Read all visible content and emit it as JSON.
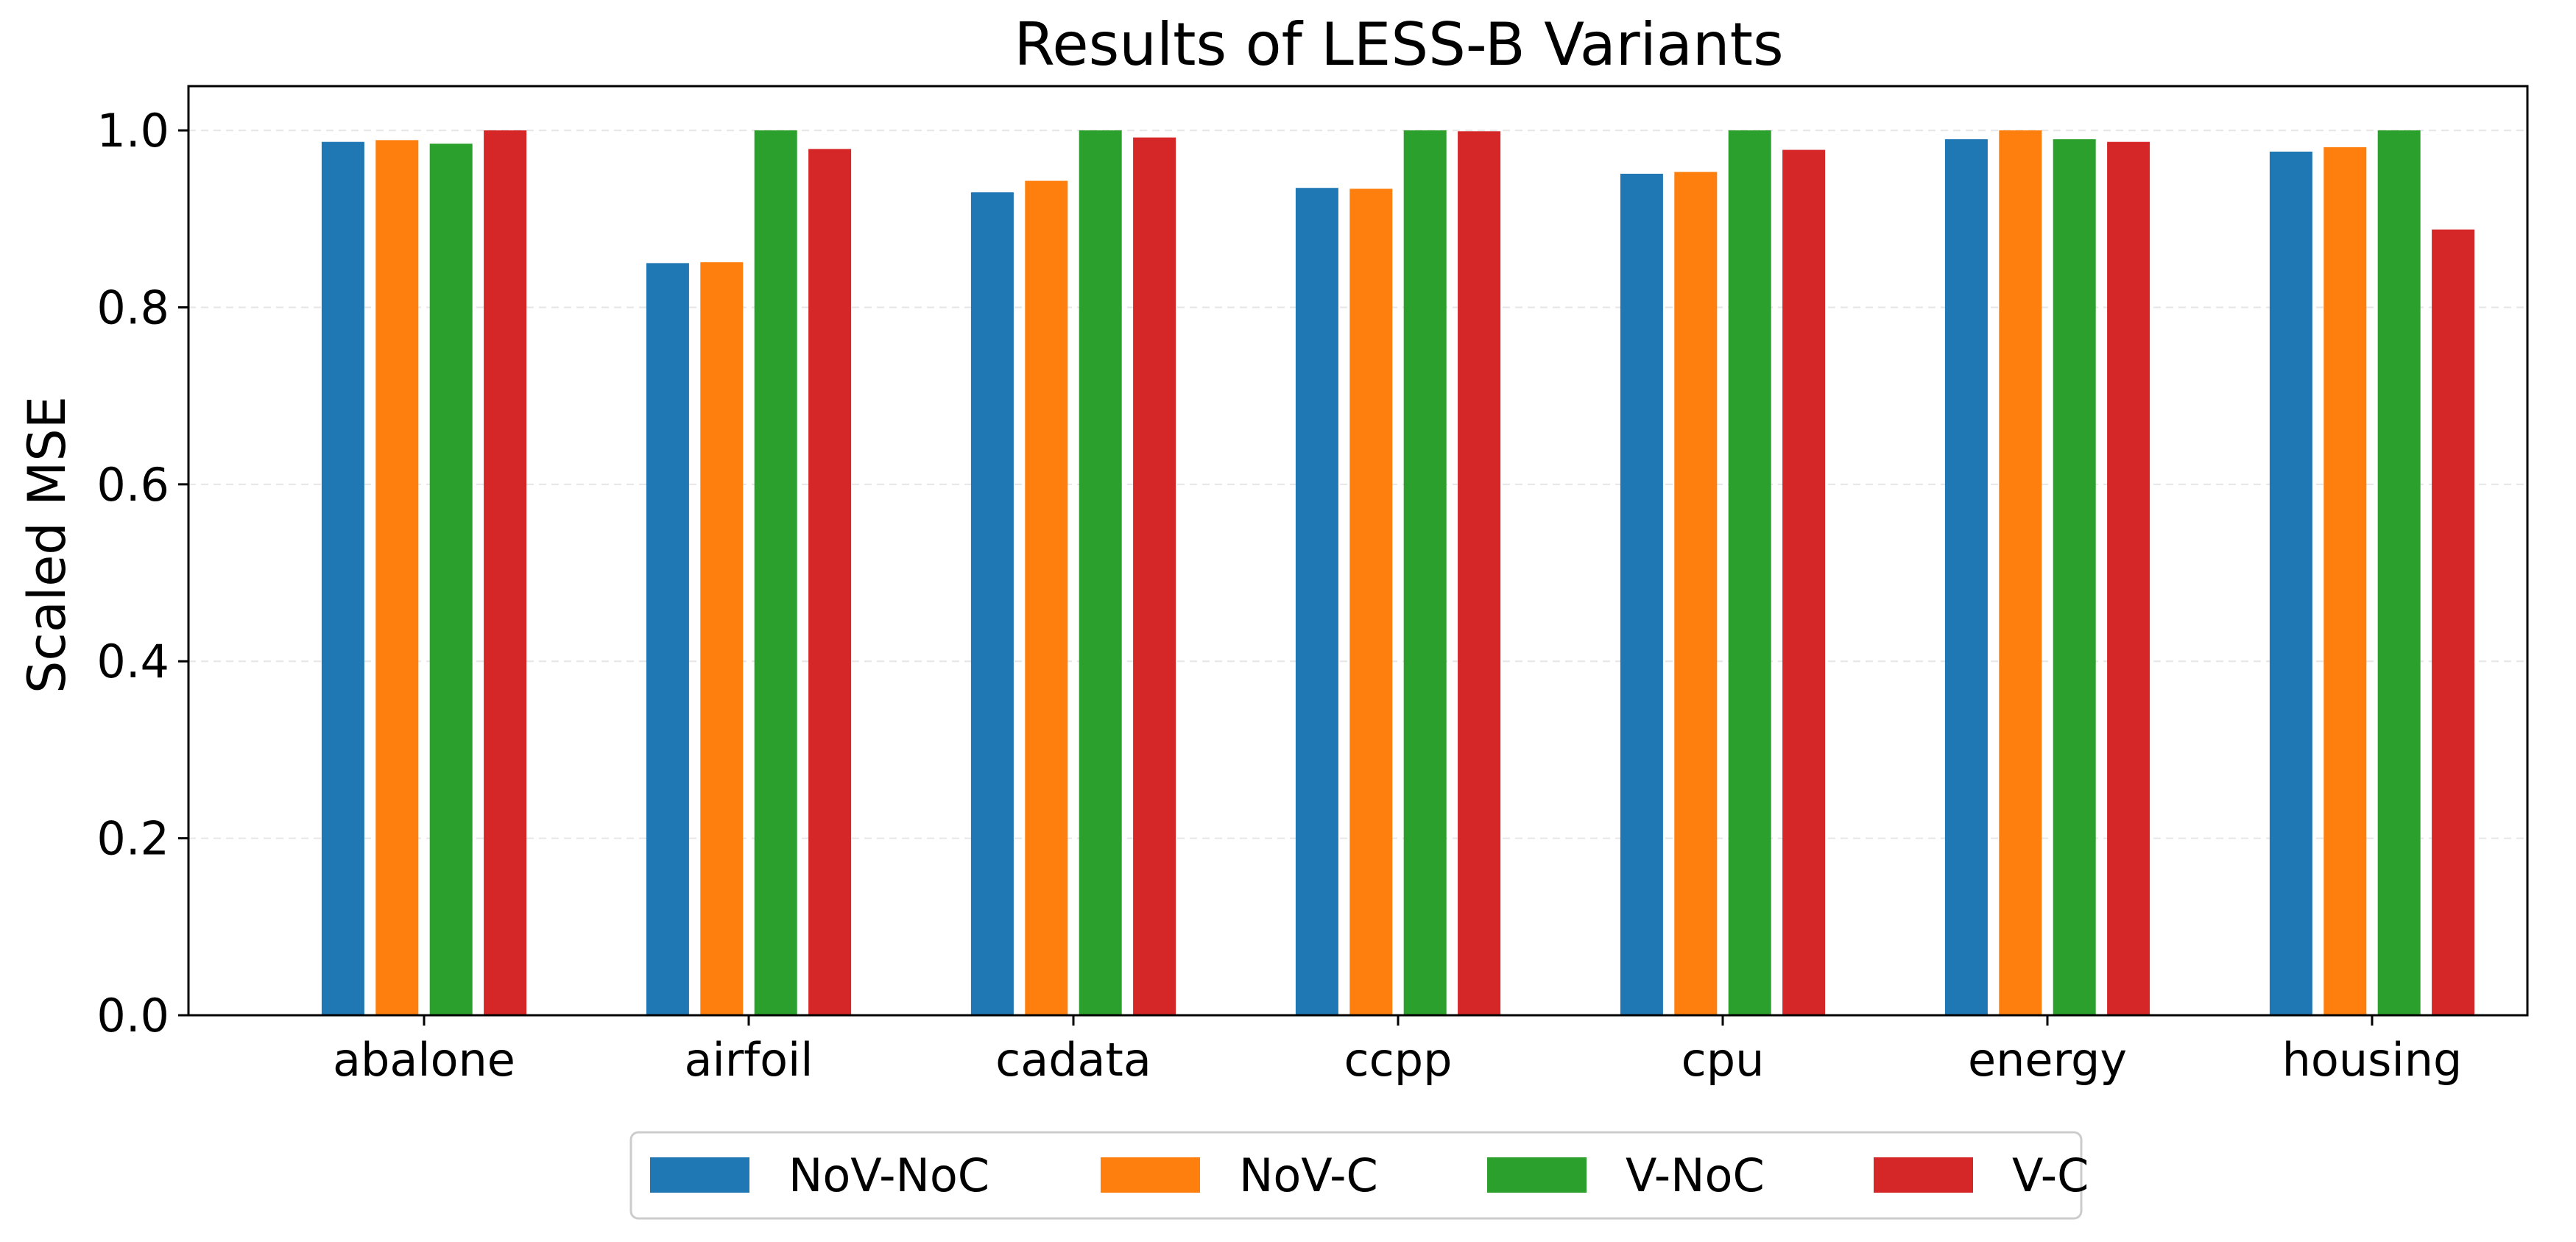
{
  "chart_data": {
    "type": "bar",
    "title": "Results of LESS-B Variants",
    "xlabel": "",
    "ylabel": "Scaled MSE",
    "ylim": [
      0,
      1.05
    ],
    "yticks": [
      "0.0",
      "0.2",
      "0.4",
      "0.6",
      "0.8",
      "1.0"
    ],
    "ytick_values": [
      0.0,
      0.2,
      0.4,
      0.6,
      0.8,
      1.0
    ],
    "grid": true,
    "legend_position": "bottom-center",
    "categories": [
      "abalone",
      "airfoil",
      "cadata",
      "ccpp",
      "cpu",
      "energy",
      "housing"
    ],
    "series": [
      {
        "name": "NoV-NoC",
        "color": "#1f77b4",
        "values": [
          0.987,
          0.85,
          0.93,
          0.935,
          0.951,
          0.99,
          0.976
        ]
      },
      {
        "name": "NoV-C",
        "color": "#ff7f0e",
        "values": [
          0.989,
          0.851,
          0.943,
          0.934,
          0.953,
          1.0,
          0.981
        ]
      },
      {
        "name": "V-NoC",
        "color": "#2ca02c",
        "values": [
          0.985,
          1.0,
          1.0,
          1.0,
          1.0,
          0.99,
          1.0
        ]
      },
      {
        "name": "V-C",
        "color": "#d62728",
        "values": [
          1.0,
          0.979,
          0.992,
          0.999,
          0.978,
          0.987,
          0.888
        ]
      }
    ]
  }
}
